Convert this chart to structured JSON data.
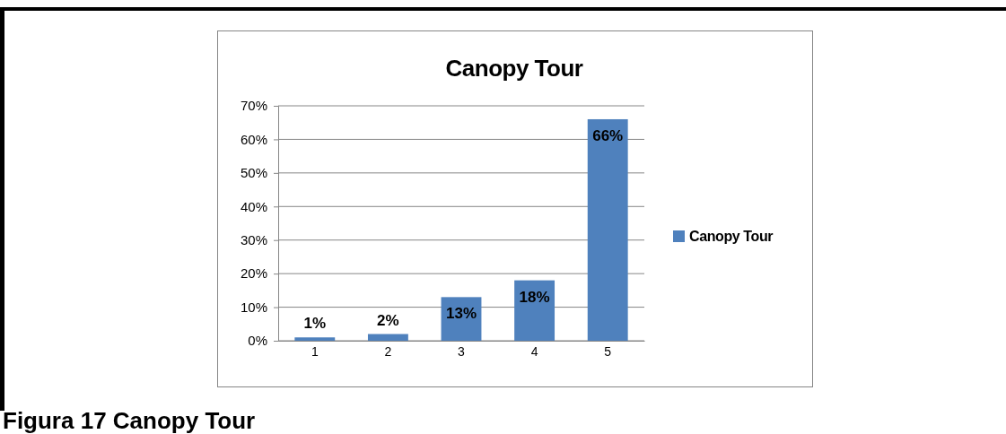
{
  "chart_data": {
    "type": "bar",
    "title": "Canopy Tour",
    "categories": [
      "1",
      "2",
      "3",
      "4",
      "5"
    ],
    "series": [
      {
        "name": "Canopy Tour",
        "color": "#4f81bd",
        "values": [
          1,
          2,
          13,
          18,
          66
        ],
        "value_labels": [
          "1%",
          "2%",
          "13%",
          "18%",
          "66%"
        ]
      }
    ],
    "ylim": [
      0,
      70
    ],
    "yticks": [
      {
        "value": 0,
        "label": "0%"
      },
      {
        "value": 10,
        "label": "10%"
      },
      {
        "value": 20,
        "label": "20%"
      },
      {
        "value": 30,
        "label": "30%"
      },
      {
        "value": 40,
        "label": "40%"
      },
      {
        "value": 50,
        "label": "50%"
      },
      {
        "value": 60,
        "label": "60%"
      },
      {
        "value": 70,
        "label": "70%"
      }
    ],
    "grid": "y",
    "legend": "right",
    "annotations": [
      "Figura 17 Canopy Tour"
    ]
  }
}
